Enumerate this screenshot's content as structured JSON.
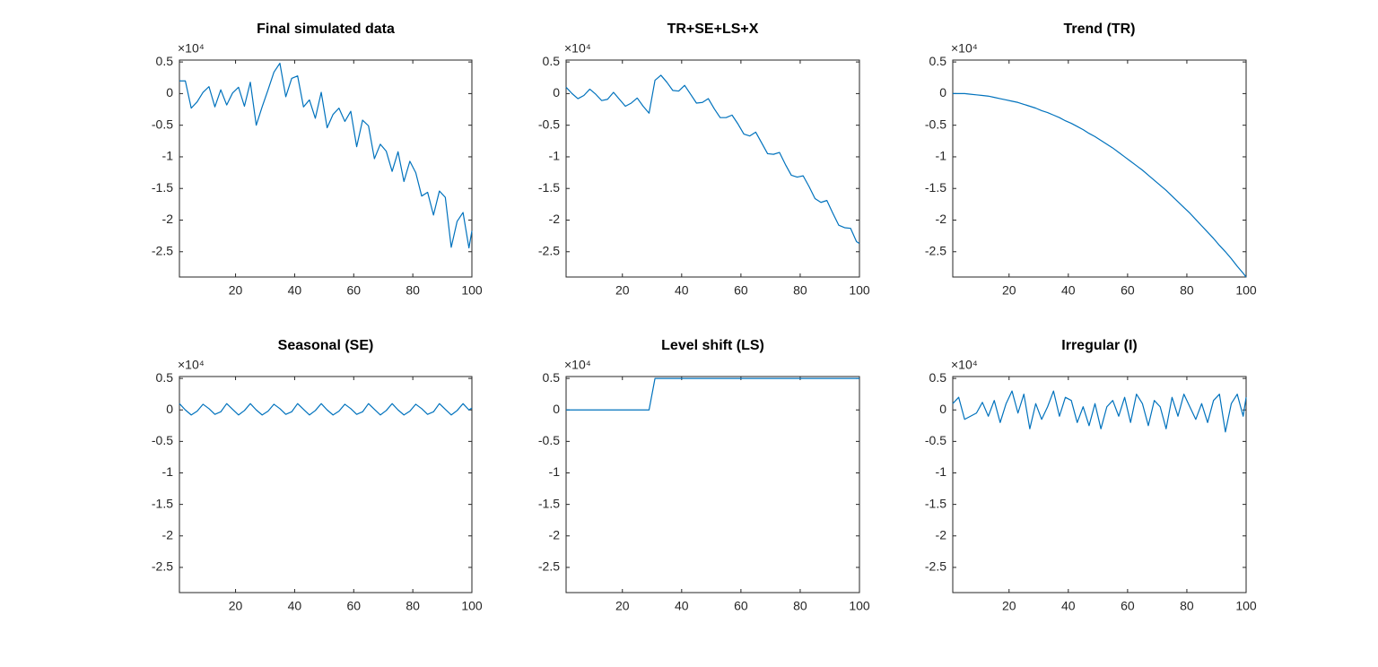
{
  "chart_data": [
    {
      "type": "line",
      "title": "Final simulated data",
      "y_scale_label": "×10⁴",
      "color": "#0072BD",
      "x": [
        1,
        3,
        5,
        7,
        9,
        11,
        13,
        15,
        17,
        19,
        21,
        23,
        25,
        27,
        29,
        31,
        33,
        35,
        37,
        39,
        41,
        43,
        45,
        47,
        49,
        51,
        53,
        55,
        57,
        59,
        61,
        63,
        65,
        67,
        69,
        71,
        73,
        75,
        77,
        79,
        81,
        83,
        85,
        87,
        89,
        91,
        93,
        95,
        97,
        99,
        100
      ],
      "values": [
        0.2,
        0.2,
        -0.23,
        -0.13,
        0.02,
        0.11,
        -0.21,
        0.06,
        -0.18,
        0.01,
        0.1,
        -0.2,
        0.18,
        -0.5,
        -0.21,
        0.06,
        0.34,
        0.48,
        -0.05,
        0.24,
        0.28,
        -0.21,
        -0.1,
        -0.39,
        0.02,
        -0.54,
        -0.33,
        -0.23,
        -0.44,
        -0.28,
        -0.84,
        -0.42,
        -0.51,
        -1.03,
        -0.8,
        -0.91,
        -1.23,
        -0.92,
        -1.39,
        -1.07,
        -1.25,
        -1.62,
        -1.56,
        -1.92,
        -1.54,
        -1.64,
        -2.43,
        -2.02,
        -1.88,
        -2.44,
        -2.17
      ],
      "xlim": [
        1,
        100
      ],
      "xticks": [
        20,
        40,
        60,
        80,
        100
      ],
      "ylim": [
        -2.9,
        0.53
      ],
      "yticks": [
        0.5,
        0,
        -0.5,
        -1,
        -1.5,
        -2,
        -2.5
      ]
    },
    {
      "type": "line",
      "title": "TR+SE+LS+X",
      "y_scale_label": "×10⁴",
      "color": "#0072BD",
      "x": [
        1,
        3,
        5,
        7,
        9,
        11,
        13,
        15,
        17,
        19,
        21,
        23,
        25,
        27,
        29,
        31,
        33,
        35,
        37,
        39,
        41,
        43,
        45,
        47,
        49,
        51,
        53,
        55,
        57,
        59,
        61,
        63,
        65,
        67,
        69,
        71,
        73,
        75,
        77,
        79,
        81,
        83,
        85,
        87,
        89,
        91,
        93,
        95,
        97,
        99,
        100
      ],
      "values": [
        0.1,
        0.0,
        -0.08,
        -0.03,
        0.07,
        -0.01,
        -0.11,
        -0.09,
        0.02,
        -0.09,
        -0.2,
        -0.15,
        -0.07,
        -0.2,
        -0.31,
        0.21,
        0.29,
        0.18,
        0.05,
        0.04,
        0.13,
        -0.01,
        -0.15,
        -0.14,
        -0.08,
        -0.24,
        -0.38,
        -0.38,
        -0.34,
        -0.48,
        -0.64,
        -0.67,
        -0.61,
        -0.78,
        -0.95,
        -0.96,
        -0.93,
        -1.12,
        -1.29,
        -1.32,
        -1.3,
        -1.47,
        -1.66,
        -1.72,
        -1.69,
        -1.89,
        -2.08,
        -2.12,
        -2.13,
        -2.34,
        -2.37
      ],
      "xlim": [
        1,
        100
      ],
      "xticks": [
        20,
        40,
        60,
        80,
        100
      ],
      "ylim": [
        -2.9,
        0.53
      ],
      "yticks": [
        0.5,
        0,
        -0.5,
        -1,
        -1.5,
        -2,
        -2.5
      ]
    },
    {
      "type": "line",
      "title": "Trend (TR)",
      "y_scale_label": "×10⁴",
      "color": "#0072BD",
      "x": [
        1,
        3,
        5,
        7,
        9,
        11,
        13,
        15,
        17,
        19,
        21,
        23,
        25,
        27,
        29,
        31,
        33,
        35,
        37,
        39,
        41,
        43,
        45,
        47,
        49,
        51,
        53,
        55,
        57,
        59,
        61,
        63,
        65,
        67,
        69,
        71,
        73,
        75,
        77,
        79,
        81,
        83,
        85,
        87,
        89,
        91,
        93,
        95,
        97,
        99,
        100
      ],
      "values": [
        0,
        0,
        0,
        -0.01,
        -0.02,
        -0.03,
        -0.04,
        -0.06,
        -0.08,
        -0.1,
        -0.12,
        -0.14,
        -0.17,
        -0.2,
        -0.23,
        -0.27,
        -0.3,
        -0.34,
        -0.38,
        -0.43,
        -0.47,
        -0.52,
        -0.57,
        -0.63,
        -0.68,
        -0.74,
        -0.8,
        -0.86,
        -0.93,
        -1.0,
        -1.07,
        -1.14,
        -1.21,
        -1.29,
        -1.37,
        -1.45,
        -1.53,
        -1.62,
        -1.71,
        -1.8,
        -1.89,
        -1.99,
        -2.09,
        -2.19,
        -2.29,
        -2.4,
        -2.5,
        -2.61,
        -2.73,
        -2.84,
        -2.9
      ],
      "xlim": [
        1,
        100
      ],
      "xticks": [
        20,
        40,
        60,
        80,
        100
      ],
      "ylim": [
        -2.9,
        0.53
      ],
      "yticks": [
        0.5,
        0,
        -0.5,
        -1,
        -1.5,
        -2,
        -2.5
      ]
    },
    {
      "type": "line",
      "title": "Seasonal (SE)",
      "y_scale_label": "×10⁴",
      "color": "#0072BD",
      "x": [
        1,
        3,
        5,
        7,
        9,
        11,
        13,
        15,
        17,
        19,
        21,
        23,
        25,
        27,
        29,
        31,
        33,
        35,
        37,
        39,
        41,
        43,
        45,
        47,
        49,
        51,
        53,
        55,
        57,
        59,
        61,
        63,
        65,
        67,
        69,
        71,
        73,
        75,
        77,
        79,
        81,
        83,
        85,
        87,
        89,
        91,
        93,
        95,
        97,
        99,
        100
      ],
      "values": [
        0.1,
        0,
        -0.08,
        -0.02,
        0.09,
        0.02,
        -0.07,
        -0.03,
        0.1,
        0.01,
        -0.08,
        -0.01,
        0.1,
        0,
        -0.08,
        -0.02,
        0.09,
        0.02,
        -0.07,
        -0.03,
        0.1,
        0.01,
        -0.08,
        -0.01,
        0.1,
        0,
        -0.08,
        -0.02,
        0.09,
        0.02,
        -0.07,
        -0.03,
        0.1,
        0.01,
        -0.08,
        -0.01,
        0.1,
        0,
        -0.08,
        -0.02,
        0.09,
        0.02,
        -0.07,
        -0.03,
        0.1,
        0.01,
        -0.08,
        -0.01,
        0.1,
        0,
        0.03
      ],
      "xlim": [
        1,
        100
      ],
      "xticks": [
        20,
        40,
        60,
        80,
        100
      ],
      "ylim": [
        -2.9,
        0.53
      ],
      "yticks": [
        0.5,
        0,
        -0.5,
        -1,
        -1.5,
        -2,
        -2.5
      ]
    },
    {
      "type": "line",
      "title": "Level shift (LS)",
      "y_scale_label": "×10⁴",
      "color": "#0072BD",
      "x": [
        1,
        3,
        5,
        7,
        9,
        11,
        13,
        15,
        17,
        19,
        21,
        23,
        25,
        27,
        29,
        31,
        33,
        35,
        37,
        39,
        41,
        43,
        45,
        47,
        49,
        51,
        53,
        55,
        57,
        59,
        61,
        63,
        65,
        67,
        69,
        71,
        73,
        75,
        77,
        79,
        81,
        83,
        85,
        87,
        89,
        91,
        93,
        95,
        97,
        99,
        100
      ],
      "values": [
        0,
        0,
        0,
        0,
        0,
        0,
        0,
        0,
        0,
        0,
        0,
        0,
        0,
        0,
        0,
        0.5,
        0.5,
        0.5,
        0.5,
        0.5,
        0.5,
        0.5,
        0.5,
        0.5,
        0.5,
        0.5,
        0.5,
        0.5,
        0.5,
        0.5,
        0.5,
        0.5,
        0.5,
        0.5,
        0.5,
        0.5,
        0.5,
        0.5,
        0.5,
        0.5,
        0.5,
        0.5,
        0.5,
        0.5,
        0.5,
        0.5,
        0.5,
        0.5,
        0.5,
        0.5,
        0.5
      ],
      "xlim": [
        1,
        100
      ],
      "xticks": [
        20,
        40,
        60,
        80,
        100
      ],
      "ylim": [
        -2.9,
        0.53
      ],
      "yticks": [
        0.5,
        0,
        -0.5,
        -1,
        -1.5,
        -2,
        -2.5
      ]
    },
    {
      "type": "line",
      "title": "Irregular (I)",
      "y_scale_label": "×10⁴",
      "color": "#0072BD",
      "x": [
        1,
        3,
        5,
        7,
        9,
        11,
        13,
        15,
        17,
        19,
        21,
        23,
        25,
        27,
        29,
        31,
        33,
        35,
        37,
        39,
        41,
        43,
        45,
        47,
        49,
        51,
        53,
        55,
        57,
        59,
        61,
        63,
        65,
        67,
        69,
        71,
        73,
        75,
        77,
        79,
        81,
        83,
        85,
        87,
        89,
        91,
        93,
        95,
        97,
        99,
        100
      ],
      "values": [
        0.1,
        0.2,
        -0.15,
        -0.1,
        -0.05,
        0.12,
        -0.1,
        0.15,
        -0.2,
        0.1,
        0.3,
        -0.05,
        0.25,
        -0.3,
        0.1,
        -0.15,
        0.05,
        0.3,
        -0.1,
        0.2,
        0.15,
        -0.2,
        0.05,
        -0.25,
        0.1,
        -0.3,
        0.05,
        0.15,
        -0.1,
        0.2,
        -0.2,
        0.25,
        0.1,
        -0.25,
        0.15,
        0.05,
        -0.3,
        0.2,
        -0.1,
        0.25,
        0.05,
        -0.15,
        0.1,
        -0.2,
        0.15,
        0.25,
        -0.35,
        0.1,
        0.25,
        -0.1,
        0.2
      ],
      "xlim": [
        1,
        100
      ],
      "xticks": [
        20,
        40,
        60,
        80,
        100
      ],
      "ylim": [
        -2.9,
        0.53
      ],
      "yticks": [
        0.5,
        0,
        -0.5,
        -1,
        -1.5,
        -2,
        -2.5
      ]
    }
  ]
}
